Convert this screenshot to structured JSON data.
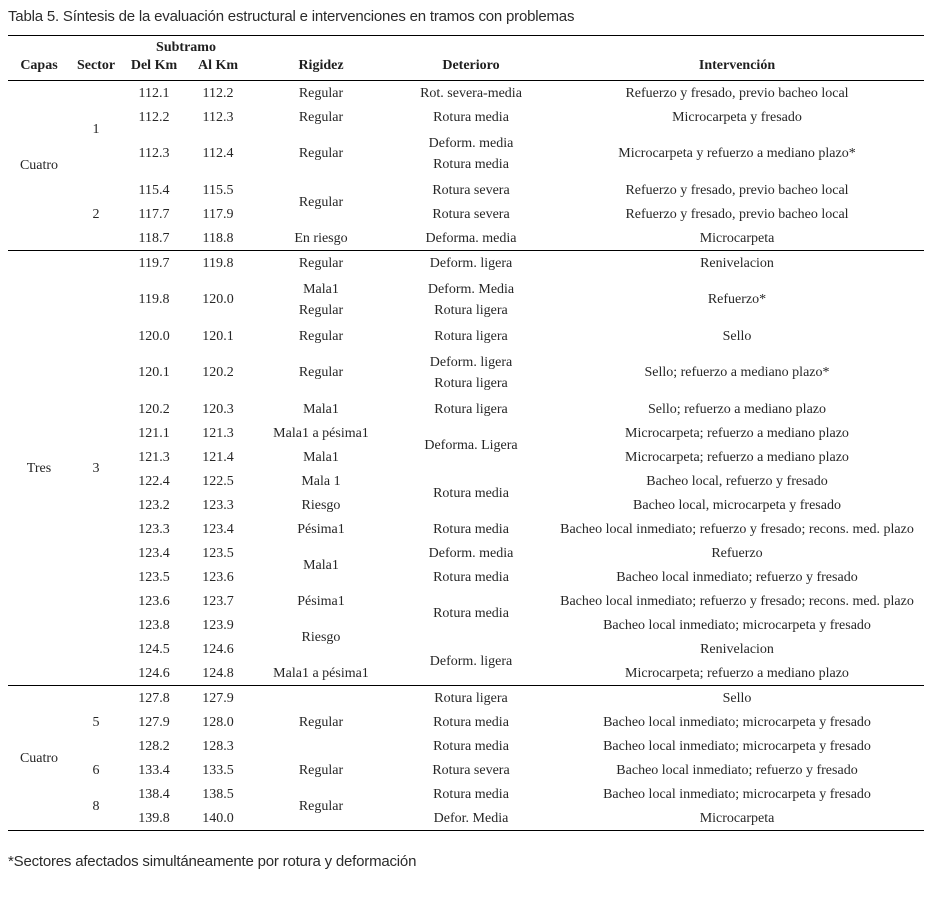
{
  "title": "Tabla 5. Síntesis de la evaluación estructural e intervenciones en tramos con problemas",
  "footnote": "*Sectores afectados simultáneamente por rotura y deformación",
  "table": {
    "header": {
      "capas": "Capas",
      "sector": "Sector",
      "subtramo": "Subtramo",
      "del_km": "Del Km",
      "al_km": "Al Km",
      "rigidez": "Rigidez",
      "deterioro": "Deterioro",
      "intervencion": "Intervención"
    },
    "rows": [
      {
        "section_start": false,
        "cells": [
          {
            "col": "capas",
            "text": "Cuatro",
            "rowspan": 6
          },
          {
            "col": "sector",
            "text": "1",
            "rowspan": 3
          },
          {
            "col": "del",
            "text": "112.1"
          },
          {
            "col": "al",
            "text": "112.2"
          },
          {
            "col": "rigidez",
            "text": "Regular"
          },
          {
            "col": "deterioro",
            "text": "Rot. severa-media"
          },
          {
            "col": "interv",
            "text": "Refuerzo y fresado, previo bacheo local"
          }
        ]
      },
      {
        "section_start": false,
        "cells": [
          {
            "col": "del",
            "text": "112.2"
          },
          {
            "col": "al",
            "text": "112.3"
          },
          {
            "col": "rigidez",
            "text": "Regular"
          },
          {
            "col": "deterioro",
            "text": "Rotura media"
          },
          {
            "col": "interv",
            "text": "Microcarpeta y fresado"
          }
        ]
      },
      {
        "section_start": false,
        "cells": [
          {
            "col": "del",
            "text": "112.3"
          },
          {
            "col": "al",
            "text": "112.4"
          },
          {
            "col": "rigidez",
            "text": "Regular"
          },
          {
            "col": "deterioro",
            "lines": [
              "Deform. media",
              "Rotura media"
            ]
          },
          {
            "col": "interv",
            "text": "Microcarpeta y refuerzo a mediano plazo*"
          }
        ]
      },
      {
        "section_start": false,
        "cells": [
          {
            "col": "sector",
            "text": "2",
            "rowspan": 3
          },
          {
            "col": "del",
            "text": "115.4"
          },
          {
            "col": "al",
            "text": "115.5"
          },
          {
            "col": "rigidez",
            "text": "Regular",
            "rowspan": 2
          },
          {
            "col": "deterioro",
            "text": "Rotura severa"
          },
          {
            "col": "interv",
            "text": "Refuerzo y fresado, previo bacheo local"
          }
        ]
      },
      {
        "section_start": false,
        "cells": [
          {
            "col": "del",
            "text": "117.7"
          },
          {
            "col": "al",
            "text": "117.9"
          },
          {
            "col": "deterioro",
            "text": "Rotura severa"
          },
          {
            "col": "interv",
            "text": "Refuerzo y fresado, previo bacheo local"
          }
        ]
      },
      {
        "section_start": false,
        "cells": [
          {
            "col": "del",
            "text": "118.7"
          },
          {
            "col": "al",
            "text": "118.8"
          },
          {
            "col": "rigidez",
            "text": "En riesgo"
          },
          {
            "col": "deterioro",
            "text": "Deforma. media"
          },
          {
            "col": "interv",
            "text": "Microcarpeta"
          }
        ]
      },
      {
        "section_start": true,
        "cells": [
          {
            "col": "capas",
            "text": "Tres",
            "rowspan": 16
          },
          {
            "col": "sector",
            "text": "3",
            "rowspan": 16
          },
          {
            "col": "del",
            "text": "119.7"
          },
          {
            "col": "al",
            "text": "119.8"
          },
          {
            "col": "rigidez",
            "text": "Regular"
          },
          {
            "col": "deterioro",
            "text": "Deform. ligera"
          },
          {
            "col": "interv",
            "text": "Renivelacion"
          }
        ]
      },
      {
        "section_start": false,
        "cells": [
          {
            "col": "del",
            "text": "119.8"
          },
          {
            "col": "al",
            "text": "120.0"
          },
          {
            "col": "rigidez",
            "lines": [
              "Mala1",
              "Regular"
            ]
          },
          {
            "col": "deterioro",
            "lines": [
              "Deform. Media",
              "Rotura ligera"
            ]
          },
          {
            "col": "interv",
            "text": "Refuerzo*"
          }
        ]
      },
      {
        "section_start": false,
        "cells": [
          {
            "col": "del",
            "text": "120.0"
          },
          {
            "col": "al",
            "text": "120.1"
          },
          {
            "col": "rigidez",
            "text": "Regular"
          },
          {
            "col": "deterioro",
            "text": "Rotura ligera"
          },
          {
            "col": "interv",
            "text": "Sello"
          }
        ]
      },
      {
        "section_start": false,
        "cells": [
          {
            "col": "del",
            "text": "120.1"
          },
          {
            "col": "al",
            "text": "120.2"
          },
          {
            "col": "rigidez",
            "text": "Regular"
          },
          {
            "col": "deterioro",
            "lines": [
              "Deform. ligera",
              "Rotura ligera"
            ]
          },
          {
            "col": "interv",
            "text": "Sello; refuerzo a mediano plazo*"
          }
        ]
      },
      {
        "section_start": false,
        "cells": [
          {
            "col": "del",
            "text": "120.2"
          },
          {
            "col": "al",
            "text": "120.3"
          },
          {
            "col": "rigidez",
            "text": "Mala1"
          },
          {
            "col": "deterioro",
            "text": "Rotura ligera"
          },
          {
            "col": "interv",
            "text": "Sello; refuerzo a mediano plazo"
          }
        ]
      },
      {
        "section_start": false,
        "cells": [
          {
            "col": "del",
            "text": "121.1"
          },
          {
            "col": "al",
            "text": "121.3"
          },
          {
            "col": "rigidez",
            "text": "Mala1 a pésima1"
          },
          {
            "col": "deterioro",
            "text": "Deforma. Ligera",
            "rowspan": 2
          },
          {
            "col": "interv",
            "text": "Microcarpeta; refuerzo a mediano plazo"
          }
        ]
      },
      {
        "section_start": false,
        "cells": [
          {
            "col": "del",
            "text": "121.3"
          },
          {
            "col": "al",
            "text": "121.4"
          },
          {
            "col": "rigidez",
            "text": "Mala1"
          },
          {
            "col": "interv",
            "text": "Microcarpeta; refuerzo a mediano plazo"
          }
        ]
      },
      {
        "section_start": false,
        "cells": [
          {
            "col": "del",
            "text": "122.4"
          },
          {
            "col": "al",
            "text": "122.5"
          },
          {
            "col": "rigidez",
            "text": "Mala 1"
          },
          {
            "col": "deterioro",
            "text": "Rotura media",
            "rowspan": 2
          },
          {
            "col": "interv",
            "text": "Bacheo local, refuerzo y fresado"
          }
        ]
      },
      {
        "section_start": false,
        "cells": [
          {
            "col": "del",
            "text": "123.2"
          },
          {
            "col": "al",
            "text": "123.3"
          },
          {
            "col": "rigidez",
            "text": "Riesgo"
          },
          {
            "col": "interv",
            "text": "Bacheo local, microcarpeta y fresado"
          }
        ]
      },
      {
        "section_start": false,
        "cells": [
          {
            "col": "del",
            "text": "123.3"
          },
          {
            "col": "al",
            "text": "123.4"
          },
          {
            "col": "rigidez",
            "text": "Pésima1"
          },
          {
            "col": "deterioro",
            "text": "Rotura media"
          },
          {
            "col": "interv",
            "text": "Bacheo local inmediato; refuerzo y fresado; recons. med. plazo"
          }
        ]
      },
      {
        "section_start": false,
        "cells": [
          {
            "col": "del",
            "text": "123.4"
          },
          {
            "col": "al",
            "text": "123.5"
          },
          {
            "col": "rigidez",
            "text": "Mala1",
            "rowspan": 2
          },
          {
            "col": "deterioro",
            "text": "Deform. media"
          },
          {
            "col": "interv",
            "text": "Refuerzo"
          }
        ]
      },
      {
        "section_start": false,
        "cells": [
          {
            "col": "del",
            "text": "123.5"
          },
          {
            "col": "al",
            "text": "123.6"
          },
          {
            "col": "deterioro",
            "text": "Rotura media"
          },
          {
            "col": "interv",
            "text": "Bacheo local inmediato; refuerzo y fresado"
          }
        ]
      },
      {
        "section_start": false,
        "cells": [
          {
            "col": "del",
            "text": "123.6"
          },
          {
            "col": "al",
            "text": "123.7"
          },
          {
            "col": "rigidez",
            "text": "Pésima1"
          },
          {
            "col": "deterioro",
            "text": "Rotura media",
            "rowspan": 2
          },
          {
            "col": "interv",
            "text": "Bacheo local inmediato; refuerzo y fresado; recons. med. plazo"
          }
        ]
      },
      {
        "section_start": false,
        "cells": [
          {
            "col": "del",
            "text": "123.8"
          },
          {
            "col": "al",
            "text": "123.9"
          },
          {
            "col": "rigidez",
            "text": "Riesgo",
            "rowspan": 2
          },
          {
            "col": "interv",
            "text": "Bacheo local inmediato; microcarpeta y fresado"
          }
        ]
      },
      {
        "section_start": false,
        "cells": [
          {
            "col": "del",
            "text": "124.5"
          },
          {
            "col": "al",
            "text": "124.6"
          },
          {
            "col": "deterioro",
            "text": "Deform. ligera",
            "rowspan": 2
          },
          {
            "col": "interv",
            "text": "Renivelacion"
          }
        ]
      },
      {
        "section_start": false,
        "cells": [
          {
            "col": "del",
            "text": "124.6"
          },
          {
            "col": "al",
            "text": "124.8"
          },
          {
            "col": "rigidez",
            "text": "Mala1 a pésima1"
          },
          {
            "col": "interv",
            "text": "Microcarpeta; refuerzo a mediano plazo"
          }
        ]
      },
      {
        "section_start": true,
        "cells": [
          {
            "col": "capas",
            "text": "Cuatro",
            "rowspan": 6
          },
          {
            "col": "sector",
            "text": "5",
            "rowspan": 3
          },
          {
            "col": "del",
            "text": "127.8"
          },
          {
            "col": "al",
            "text": "127.9"
          },
          {
            "col": "rigidez",
            "text": "Regular",
            "rowspan": 3
          },
          {
            "col": "deterioro",
            "text": "Rotura ligera"
          },
          {
            "col": "interv",
            "text": "Sello"
          }
        ]
      },
      {
        "section_start": false,
        "cells": [
          {
            "col": "del",
            "text": "127.9"
          },
          {
            "col": "al",
            "text": "128.0"
          },
          {
            "col": "deterioro",
            "text": "Rotura media"
          },
          {
            "col": "interv",
            "text": "Bacheo local inmediato; microcarpeta y fresado"
          }
        ]
      },
      {
        "section_start": false,
        "cells": [
          {
            "col": "del",
            "text": "128.2"
          },
          {
            "col": "al",
            "text": "128.3"
          },
          {
            "col": "deterioro",
            "text": "Rotura media"
          },
          {
            "col": "interv",
            "text": "Bacheo local inmediato; microcarpeta y fresado"
          }
        ]
      },
      {
        "section_start": false,
        "cells": [
          {
            "col": "sector",
            "text": "6"
          },
          {
            "col": "del",
            "text": "133.4"
          },
          {
            "col": "al",
            "text": "133.5"
          },
          {
            "col": "rigidez",
            "text": "Regular"
          },
          {
            "col": "deterioro",
            "text": "Rotura severa"
          },
          {
            "col": "interv",
            "text": "Bacheo local inmediato; refuerzo y fresado"
          }
        ]
      },
      {
        "section_start": false,
        "cells": [
          {
            "col": "sector",
            "text": "8",
            "rowspan": 2
          },
          {
            "col": "del",
            "text": "138.4"
          },
          {
            "col": "al",
            "text": "138.5"
          },
          {
            "col": "rigidez",
            "text": "Regular",
            "rowspan": 2
          },
          {
            "col": "deterioro",
            "text": "Rotura media"
          },
          {
            "col": "interv",
            "text": "Bacheo local inmediato; microcarpeta y fresado"
          }
        ]
      },
      {
        "section_start": false,
        "cells": [
          {
            "col": "del",
            "text": "139.8"
          },
          {
            "col": "al",
            "text": "140.0"
          },
          {
            "col": "deterioro",
            "text": "Defor. Media"
          },
          {
            "col": "interv",
            "text": "Microcarpeta"
          }
        ]
      }
    ]
  }
}
